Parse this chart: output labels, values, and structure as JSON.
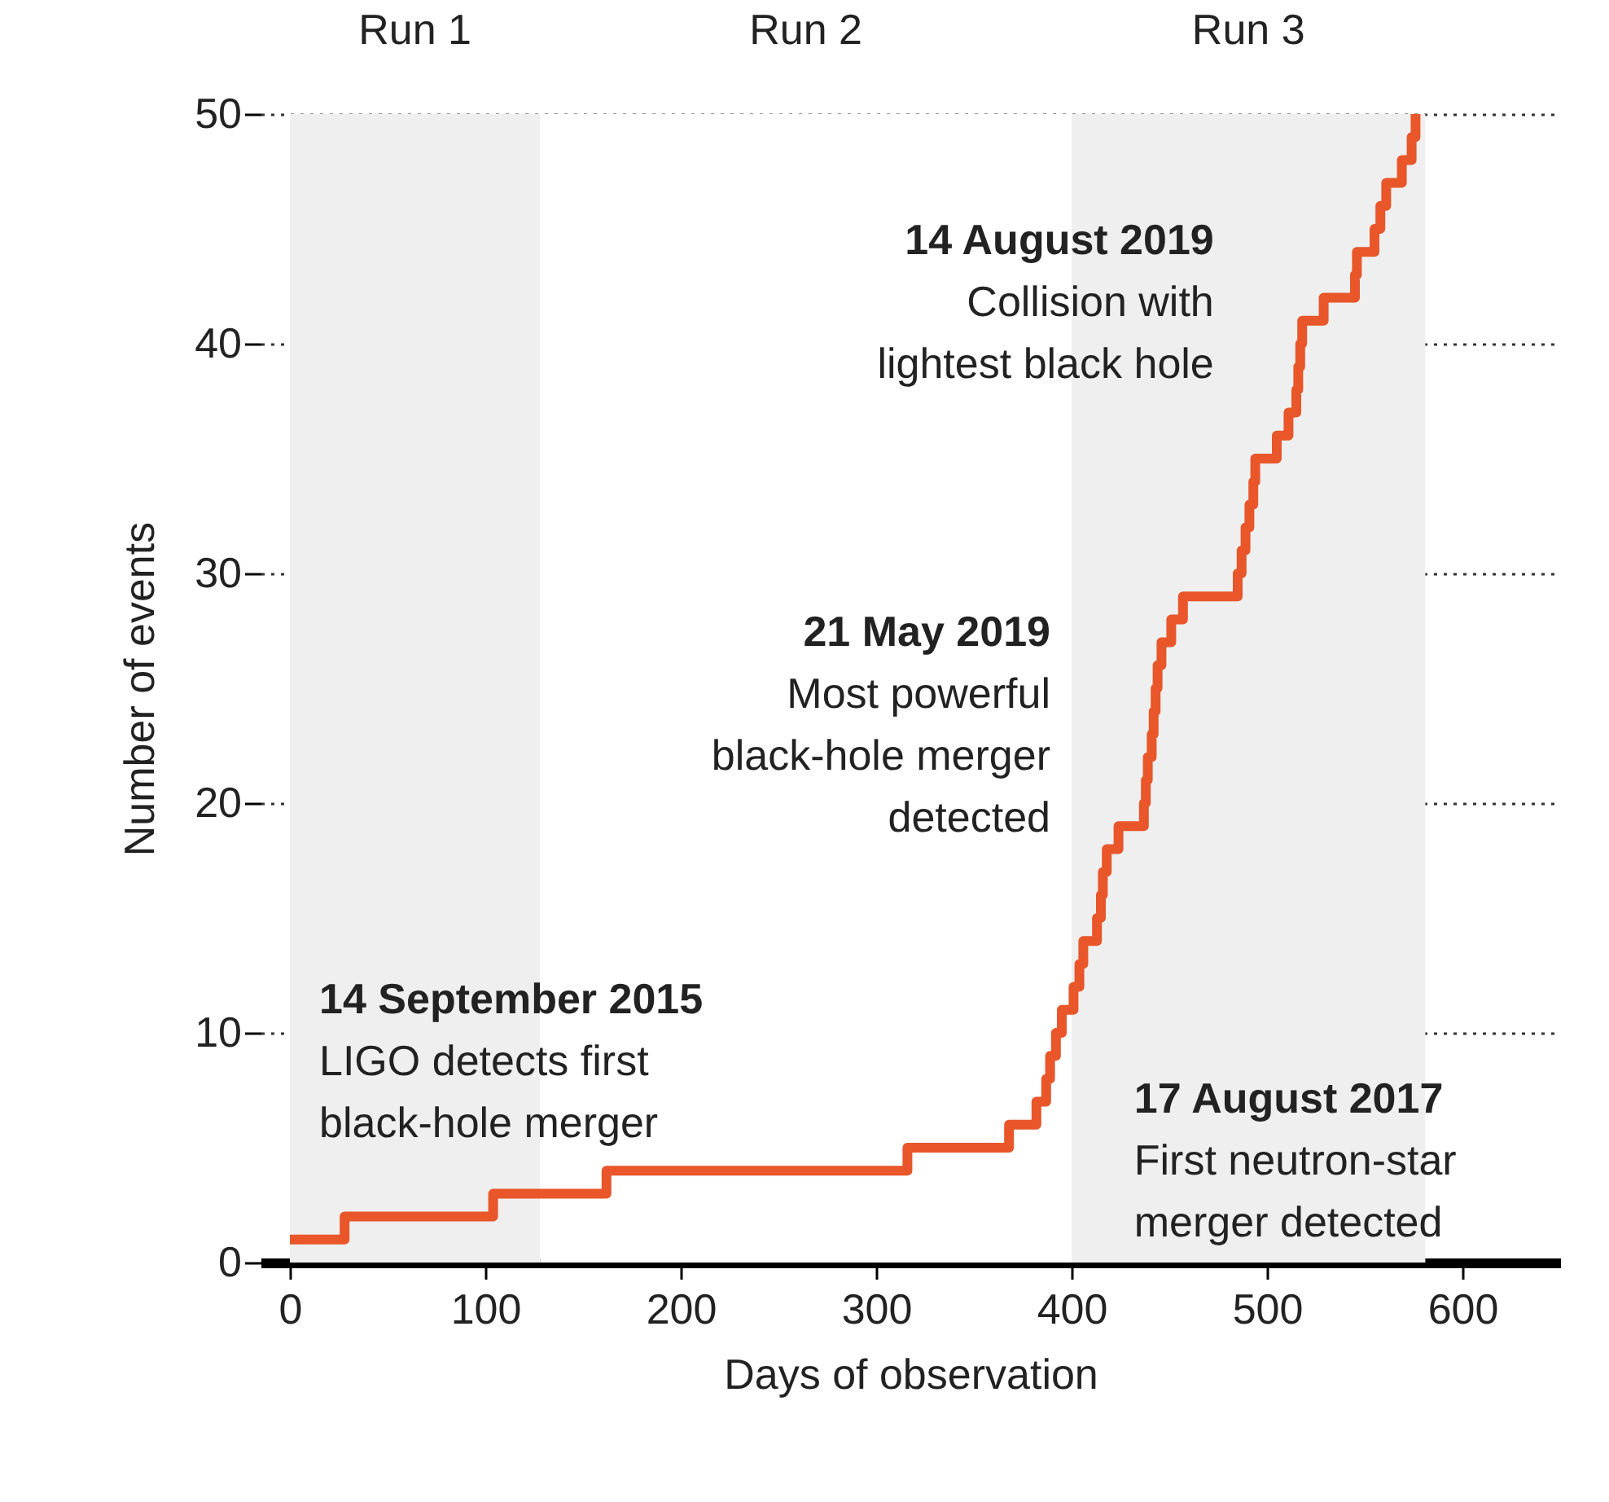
{
  "chart_data": {
    "type": "step",
    "xlabel": "Days of observation",
    "ylabel": "Number of events",
    "x": [
      0,
      28,
      104,
      162,
      316,
      368,
      382,
      387,
      389,
      392,
      395,
      401,
      404,
      406,
      413,
      415,
      416,
      418,
      424,
      437,
      438,
      439,
      441,
      442,
      443,
      444,
      446,
      451,
      457,
      485,
      487,
      489,
      491,
      493,
      494,
      505,
      511,
      515,
      516,
      517,
      518,
      529,
      545,
      546,
      555,
      558,
      561,
      569,
      574,
      576
    ],
    "values": [
      1,
      2,
      3,
      4,
      5,
      6,
      7,
      8,
      9,
      10,
      11,
      12,
      13,
      14,
      15,
      16,
      17,
      18,
      19,
      20,
      21,
      22,
      23,
      24,
      25,
      26,
      27,
      28,
      29,
      30,
      31,
      32,
      33,
      34,
      35,
      36,
      37,
      38,
      39,
      40,
      41,
      42,
      43,
      44,
      45,
      46,
      47,
      48,
      49,
      50
    ],
    "color": "#e8562a",
    "xlim": [
      -15,
      650
    ],
    "ylim": [
      0,
      50
    ],
    "xticks": [
      0,
      100,
      200,
      300,
      400,
      500,
      600
    ],
    "yticks": [
      0,
      10,
      20,
      30,
      40,
      50
    ],
    "grid": "y",
    "bands": [
      {
        "axis": "x",
        "from": 0,
        "to": 128,
        "label": "Run 1",
        "color": "#efefef"
      },
      {
        "axis": "x",
        "from": 128,
        "to": 400,
        "label": "Run 2",
        "color": "#ffffff"
      },
      {
        "axis": "x",
        "from": 400,
        "to": 581,
        "label": "Run 3",
        "color": "#efefef"
      }
    ],
    "annotations": [
      {
        "text": "14 September 2015\nLIGO detects first\nblack-hole merger",
        "x": 0,
        "y": 1
      },
      {
        "text": "17 August 2017\nFirst neutron-star\nmerger detected",
        "x": 392,
        "y": 9
      },
      {
        "text": "21 May 2019\nMost powerful\nblack-hole merger\ndetected",
        "x": 445,
        "y": 25
      },
      {
        "text": "14 August 2019\nCollision with\nlightest black hole",
        "x": 522,
        "y": 41
      }
    ]
  }
}
